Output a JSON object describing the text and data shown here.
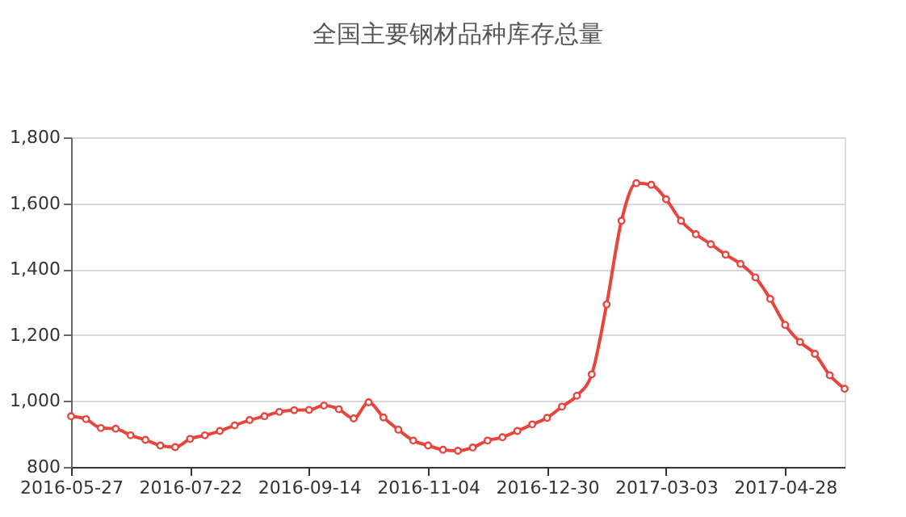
{
  "chart_data": {
    "type": "line",
    "title": "全国主要钢材品种库存总量",
    "categories": [
      "2016-05-27",
      null,
      null,
      null,
      null,
      null,
      null,
      null,
      "2016-07-22",
      null,
      null,
      null,
      null,
      null,
      null,
      null,
      "2016-09-14",
      null,
      null,
      null,
      null,
      null,
      null,
      null,
      "2016-11-04",
      null,
      null,
      null,
      null,
      null,
      null,
      null,
      "2016-12-30",
      null,
      null,
      null,
      null,
      null,
      null,
      null,
      "2017-03-03",
      null,
      null,
      null,
      null,
      null,
      null,
      null,
      "2017-04-28",
      null,
      null,
      null,
      null
    ],
    "series": [
      {
        "color": "#e8453c",
        "values": [
          954,
          945,
          918,
          916,
          896,
          882,
          865,
          860,
          885,
          896,
          909,
          926,
          942,
          954,
          967,
          972,
          973,
          986,
          975,
          947,
          996,
          950,
          913,
          880,
          865,
          852,
          849,
          859,
          880,
          890,
          909,
          929,
          949,
          983,
          1016,
          1081,
          1293,
          1547,
          1661,
          1656,
          1612,
          1547,
          1506,
          1476,
          1444,
          1416,
          1375,
          1310,
          1231,
          1179,
          1143,
          1078,
          1037
        ]
      }
    ],
    "ylim": [
      800,
      1800
    ],
    "yticks": [
      {
        "value": 800,
        "label": "800"
      },
      {
        "value": 1000,
        "label": "1,000"
      },
      {
        "value": 1200,
        "label": "1,200"
      },
      {
        "value": 1400,
        "label": "1,400"
      },
      {
        "value": 1600,
        "label": "1,600"
      },
      {
        "value": 1800,
        "label": "1,800"
      }
    ],
    "grid": "y",
    "marker": "circle",
    "line_style": "solid",
    "legend": false
  }
}
